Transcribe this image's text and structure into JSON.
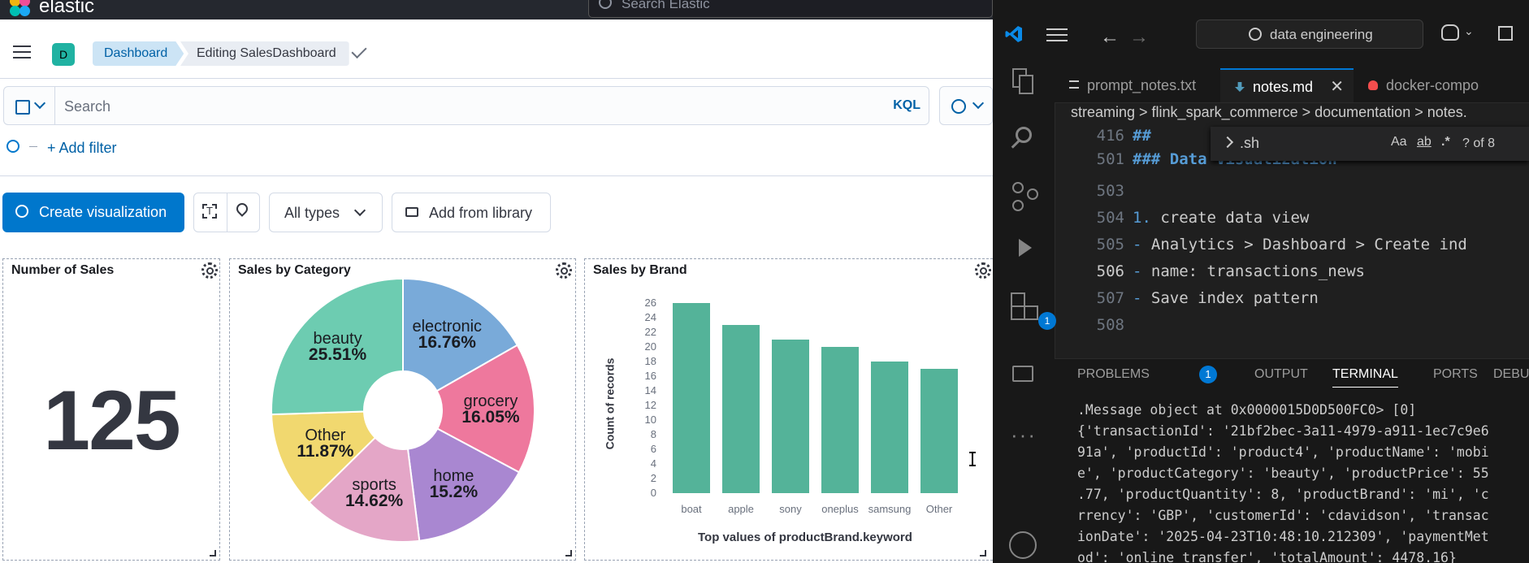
{
  "kibana": {
    "brand": "elastic",
    "search_placeholder": "Search Elastic",
    "space_initial": "D",
    "breadcrumbs": [
      "Dashboard",
      "Editing SalesDashboard"
    ],
    "query": {
      "placeholder": "Search",
      "language": "KQL"
    },
    "add_filter": "+ Add filter",
    "toolbar": {
      "create": "Create visualization",
      "types": "All types",
      "library": "Add from library"
    },
    "panels": {
      "sales_count": {
        "title": "Number of Sales",
        "value": "125"
      },
      "category": {
        "title": "Sales by Category"
      },
      "brand": {
        "title": "Sales by Brand"
      }
    }
  },
  "chart_data": [
    {
      "type": "pie",
      "title": "Sales by Category",
      "donut": true,
      "slices": [
        {
          "label": "electronic",
          "pct_label": "16.76%",
          "value": 16.76,
          "color": "#79aad9"
        },
        {
          "label": "grocery",
          "pct_label": "16.05%",
          "value": 16.05,
          "color": "#ee789d"
        },
        {
          "label": "home",
          "pct_label": "15.2%",
          "value": 15.2,
          "color": "#a987d1"
        },
        {
          "label": "sports",
          "pct_label": "14.62%",
          "value": 14.62,
          "color": "#e4a6c7"
        },
        {
          "label": "Other",
          "pct_label": "11.87%",
          "value": 11.87,
          "color": "#f1d86f"
        },
        {
          "label": "beauty",
          "pct_label": "25.51%",
          "value": 25.51,
          "color": "#6dccb1"
        }
      ]
    },
    {
      "type": "bar",
      "title": "Sales by Brand",
      "categories": [
        "boat",
        "apple",
        "sony",
        "oneplus",
        "samsung",
        "Other"
      ],
      "values": [
        26,
        23,
        21,
        20,
        18,
        17
      ],
      "ylabel": "Count of records",
      "xlabel": "Top values of productBrand.keyword",
      "ylim": [
        0,
        26
      ],
      "yticks": [
        "0",
        "2",
        "4",
        "6",
        "8",
        "10",
        "12",
        "14",
        "16",
        "18",
        "20",
        "22",
        "24",
        "26"
      ],
      "color": "#54b399"
    }
  ],
  "vscode": {
    "command_center": "data engineering",
    "tabs": [
      "prompt_notes.txt",
      "notes.md",
      "docker-compo"
    ],
    "active_tab": "notes.md",
    "close_glyph": "✕",
    "breadcrumbs": "streaming > flink_spark_commerce > documentation > notes.",
    "find": {
      "query": ".sh",
      "case": "Aa",
      "word": "ab",
      "regex": ".*",
      "result": "? of 8"
    },
    "editor_lines": [
      {
        "n": "416",
        "text": "##"
      },
      {
        "n": "501",
        "text": "### Data Visualization"
      },
      {
        "n": "503",
        "text": ""
      },
      {
        "n": "504",
        "text": "1. create data view"
      },
      {
        "n": "505",
        "text": "- Analytics > Dashboard > Create ind"
      },
      {
        "n": "506",
        "text": "- name: transactions_news"
      },
      {
        "n": "507",
        "text": "- Save index pattern"
      },
      {
        "n": "508",
        "text": ""
      }
    ],
    "extensions_badge": "1",
    "panel_tabs": [
      "PROBLEMS",
      "OUTPUT",
      "TERMINAL",
      "PORTS",
      "DEBUG CONSOL"
    ],
    "problems_count": "1",
    "terminal_lines": [
      ".Message object at 0x0000015D0D500FC0> [0]",
      "{'transactionId': '21bf2bec-3a11-4979-a911-1ec7c9e6",
      "91a', 'productId': 'product4', 'productName': 'mobi",
      "e', 'productCategory': 'beauty', 'productPrice': 55",
      ".77, 'productQuantity': 8, 'productBrand': 'mi', 'c",
      "rrency': 'GBP', 'customerId': 'cdavidson', 'transac",
      "ionDate': '2025-04-23T10:48:10.212309', 'paymentMet",
      "od': 'online_transfer', 'totalAmount': 4478.16}"
    ]
  }
}
